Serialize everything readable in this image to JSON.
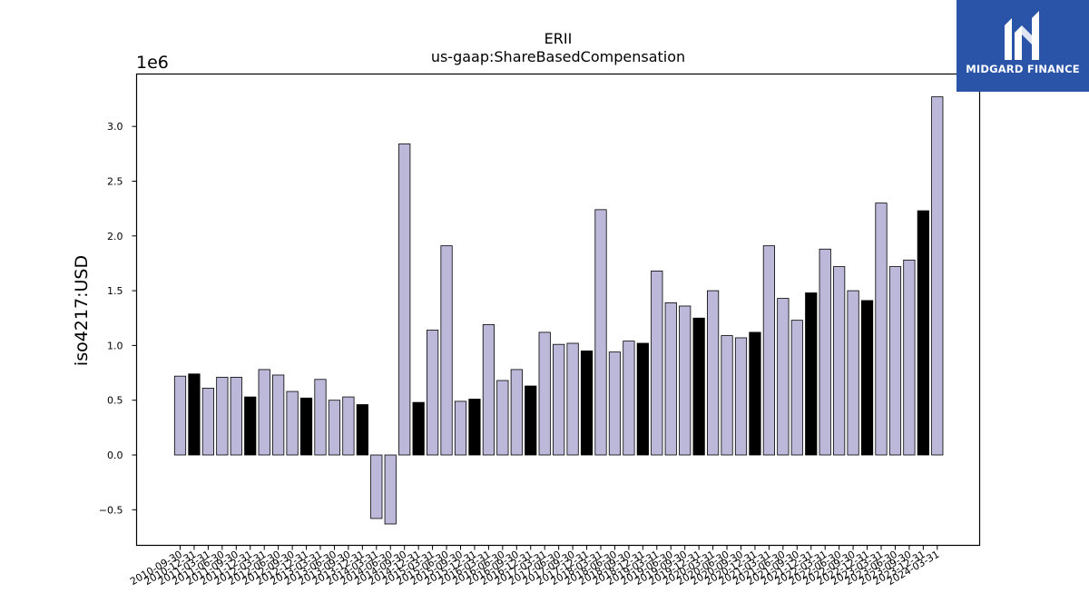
{
  "brand": {
    "name": "MIDGARD FINANCE",
    "icon": "midgard-logo-icon",
    "background_color": "#2a54a8"
  },
  "chart_data": {
    "type": "bar",
    "title": "ERII",
    "subtitle": "us-gaap:ShareBasedCompensation",
    "xlabel": "",
    "ylabel": "iso4217:USD",
    "y_offset_label": "1e6",
    "ylim": [
      -0.85,
      3.45
    ],
    "yticks": [
      -0.5,
      0.0,
      0.5,
      1.0,
      1.5,
      2.0,
      2.5,
      3.0
    ],
    "ytick_labels": [
      "−0.5",
      "0.0",
      "0.5",
      "1.0",
      "1.5",
      "2.0",
      "2.5",
      "3.0"
    ],
    "bar_colors": {
      "quarter": "#bcb8d9",
      "fiscal_year_end": "#000000",
      "edge": "#000000"
    },
    "grid": false,
    "legend": "none",
    "categories": [
      "2010-09-30",
      "2010-12-31",
      "2011-03-31",
      "2011-06-30",
      "2011-09-30",
      "2011-12-31",
      "2012-03-31",
      "2012-06-30",
      "2012-09-30",
      "2012-12-31",
      "2013-03-31",
      "2013-06-30",
      "2013-09-30",
      "2013-12-31",
      "2014-03-31",
      "2014-06-30",
      "2014-09-30",
      "2014-12-31",
      "2015-03-31",
      "2015-06-30",
      "2015-09-30",
      "2015-12-31",
      "2016-03-31",
      "2016-06-30",
      "2016-09-30",
      "2016-12-31",
      "2017-03-31",
      "2017-06-30",
      "2017-09-30",
      "2017-12-31",
      "2018-03-31",
      "2018-06-30",
      "2018-09-30",
      "2018-12-31",
      "2019-03-31",
      "2019-06-30",
      "2019-09-30",
      "2019-12-31",
      "2020-03-31",
      "2020-06-30",
      "2020-09-30",
      "2020-12-31",
      "2021-03-31",
      "2021-06-30",
      "2021-09-30",
      "2021-12-31",
      "2022-03-31",
      "2022-06-30",
      "2022-09-30",
      "2022-12-31",
      "2023-03-31",
      "2023-06-30",
      "2023-09-30",
      "2023-12-31",
      "2024-03-31"
    ],
    "values": [
      0.72,
      0.74,
      0.61,
      0.71,
      0.71,
      0.53,
      0.78,
      0.73,
      0.58,
      0.52,
      0.69,
      0.5,
      0.53,
      0.46,
      -0.58,
      -0.63,
      2.84,
      0.48,
      1.14,
      1.91,
      0.49,
      0.51,
      1.19,
      0.68,
      0.78,
      0.63,
      1.12,
      1.01,
      1.02,
      0.95,
      2.24,
      0.94,
      1.04,
      1.02,
      1.68,
      1.39,
      1.36,
      1.25,
      1.5,
      1.09,
      1.07,
      1.12,
      1.91,
      1.43,
      1.23,
      1.48,
      1.88,
      1.72,
      1.5,
      1.41,
      2.3,
      1.72,
      1.78,
      2.23,
      3.27
    ],
    "dark": [
      false,
      true,
      false,
      false,
      false,
      true,
      false,
      false,
      false,
      true,
      false,
      false,
      false,
      true,
      false,
      false,
      false,
      true,
      false,
      false,
      false,
      true,
      false,
      false,
      false,
      true,
      false,
      false,
      false,
      true,
      false,
      false,
      false,
      true,
      false,
      false,
      false,
      true,
      false,
      false,
      false,
      true,
      false,
      false,
      false,
      true,
      false,
      false,
      false,
      true,
      false,
      false,
      false,
      true,
      false
    ]
  }
}
